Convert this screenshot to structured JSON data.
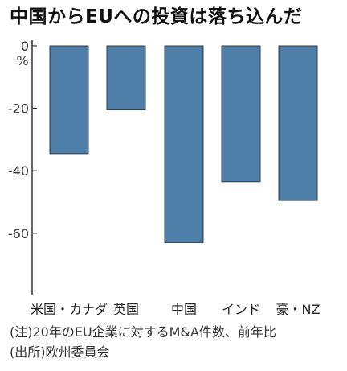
{
  "chart_data": {
    "type": "bar",
    "title": "中国からEUへの投資は落ち込んだ",
    "ylabel": "%",
    "categories": [
      "米国・カナダ",
      "英国",
      "中国",
      "インド",
      "豪・NZ"
    ],
    "values": [
      -34.5,
      -20.5,
      -63,
      -43.5,
      -49.5
    ],
    "ylim": [
      -78,
      0
    ],
    "yticks": [
      0,
      -20,
      -40,
      -60
    ],
    "grid": false,
    "bar_color": "#4e7fa8",
    "notes": [
      "(注)20年のEU企業に対するM&A件数、前年比",
      "(出所)欧州委員会"
    ]
  }
}
